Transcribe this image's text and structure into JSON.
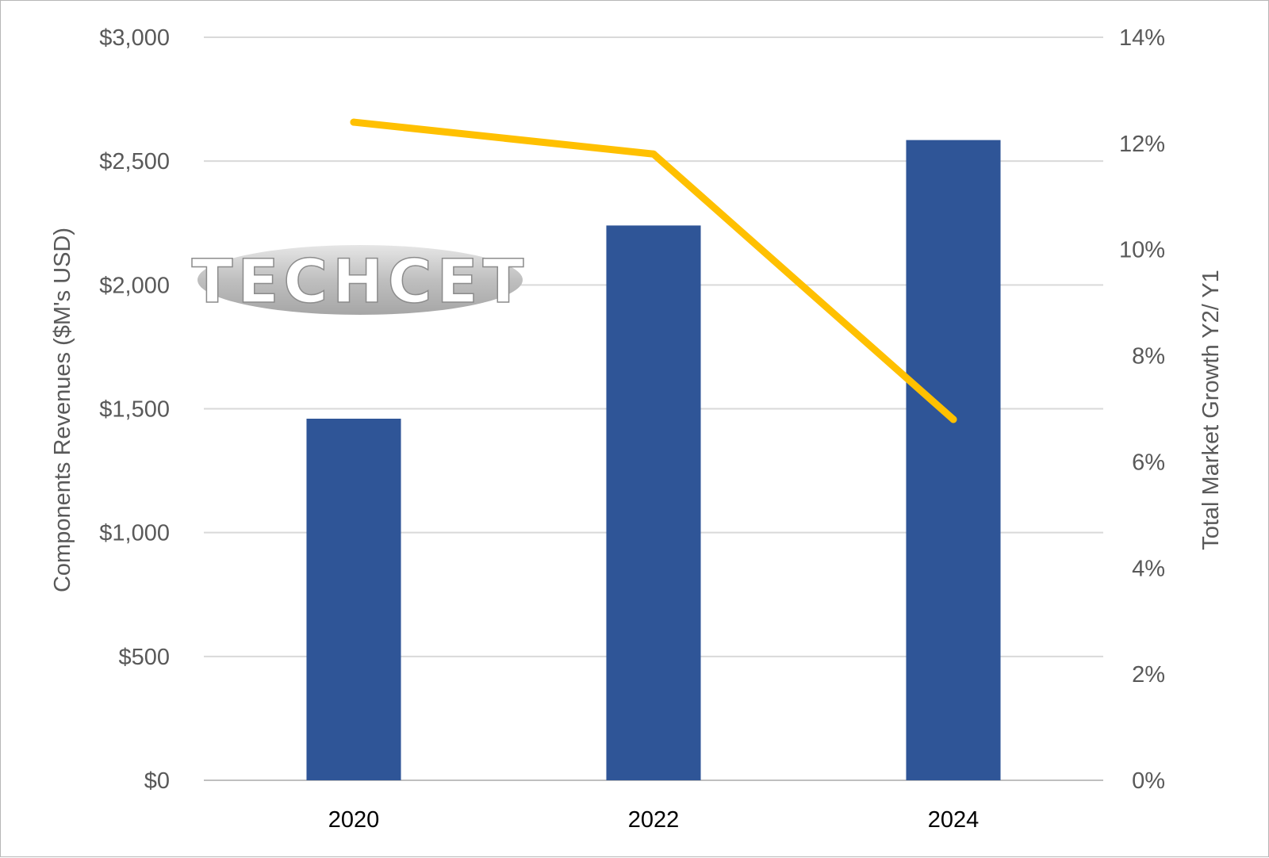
{
  "watermark": {
    "text": "TECHCET"
  },
  "chart_data": {
    "type": "bar",
    "categories": [
      "2020",
      "2022",
      "2024"
    ],
    "series": [
      {
        "values": [
          1460,
          2240,
          2585
        ],
        "chart_type": "bar",
        "axis": "left",
        "color": "#2F5597"
      },
      {
        "values": [
          12.4,
          11.8,
          6.8
        ],
        "chart_type": "line",
        "axis": "right",
        "color": "#FFC000"
      }
    ],
    "y_left": {
      "label": "Components Revenues ($M's USD)",
      "min": 0,
      "max": 3000,
      "step": 500,
      "ticks": [
        "$0",
        "$500",
        "$1,000",
        "$1,500",
        "$2,000",
        "$2,500",
        "$3,000"
      ]
    },
    "y_right": {
      "label": "Total Market Growth Y2/ Y1",
      "min": 0,
      "max": 14,
      "step": 2,
      "ticks": [
        "0%",
        "2%",
        "4%",
        "6%",
        "8%",
        "10%",
        "12%",
        "14%"
      ]
    },
    "grid": true,
    "legend": "none"
  }
}
